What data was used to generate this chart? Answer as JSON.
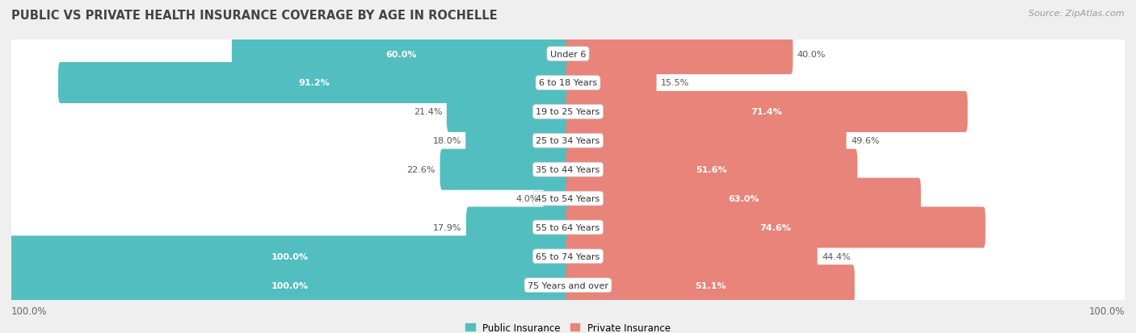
{
  "title": "PUBLIC VS PRIVATE HEALTH INSURANCE COVERAGE BY AGE IN ROCHELLE",
  "source": "Source: ZipAtlas.com",
  "categories": [
    "Under 6",
    "6 to 18 Years",
    "19 to 25 Years",
    "25 to 34 Years",
    "35 to 44 Years",
    "45 to 54 Years",
    "55 to 64 Years",
    "65 to 74 Years",
    "75 Years and over"
  ],
  "public_values": [
    60.0,
    91.2,
    21.4,
    18.0,
    22.6,
    4.0,
    17.9,
    100.0,
    100.0
  ],
  "private_values": [
    40.0,
    15.5,
    71.4,
    49.6,
    51.6,
    63.0,
    74.6,
    44.4,
    51.1
  ],
  "public_color": "#53bec0",
  "private_color": "#e8847a",
  "public_label": "Public Insurance",
  "private_label": "Private Insurance",
  "bg_color": "#efefef",
  "row_bg_color": "#f7f7f7",
  "max_value": 100.0,
  "axis_label_left": "100.0%",
  "axis_label_right": "100.0%",
  "title_fontsize": 10.5,
  "source_fontsize": 8,
  "legend_fontsize": 8.5,
  "category_fontsize": 8.0,
  "value_fontsize": 8.0
}
